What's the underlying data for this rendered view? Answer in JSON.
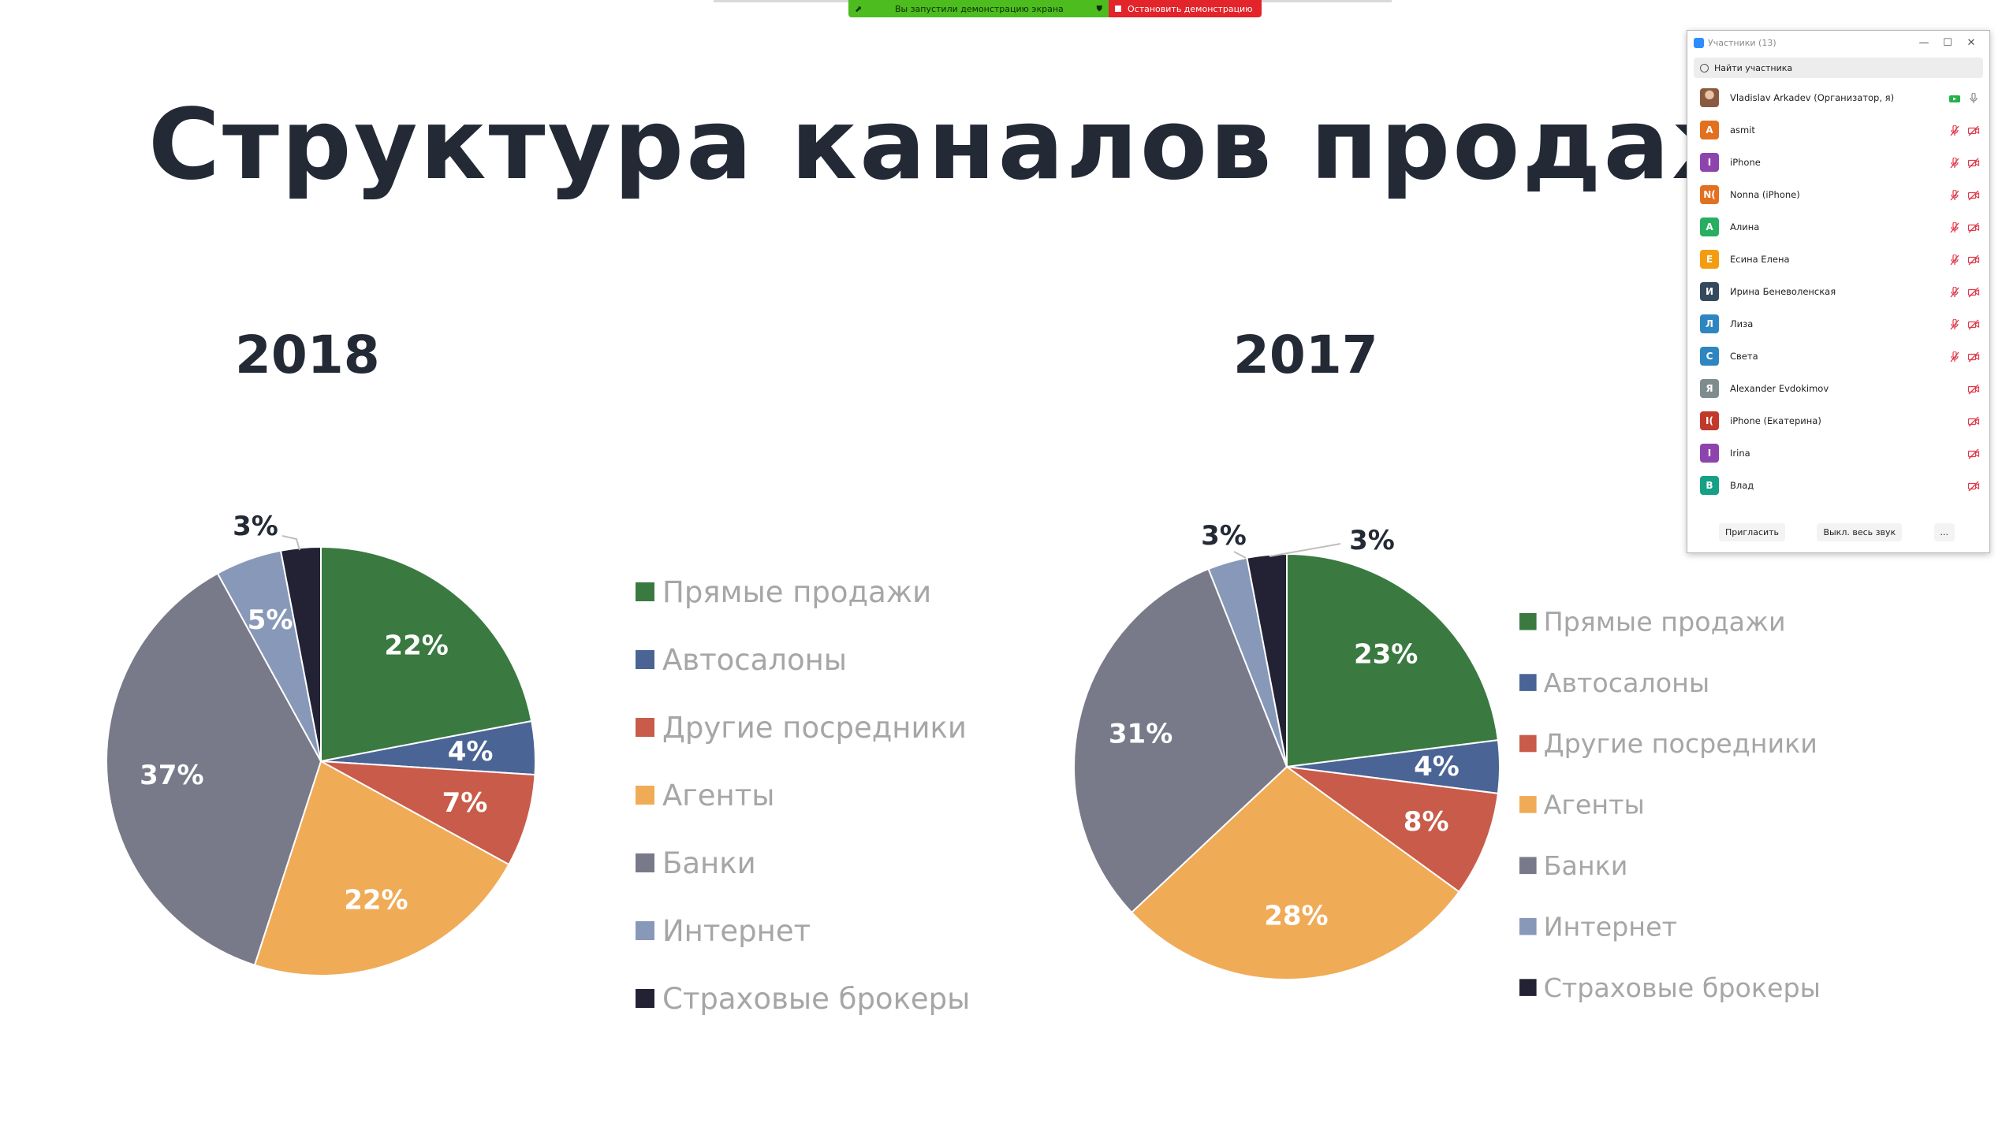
{
  "share_bar": {
    "status_text": "Вы запустили демонстрацию экрана",
    "stop_label": "Остановить демонстрацию"
  },
  "slide": {
    "title": "Структура каналов продаж",
    "year_left": "2018",
    "year_right": "2017"
  },
  "colors": {
    "direct": "#3a7a40",
    "dealers": "#4a6495",
    "other_intermediaries": "#c95b4a",
    "agents": "#f0ab57",
    "banks": "#787a8a",
    "internet": "#8898b8",
    "brokers": "#232235"
  },
  "chart_data": [
    {
      "type": "pie",
      "title": "2018",
      "categories": [
        "Прямые продажи",
        "Автосалоны",
        "Другие посредники",
        "Агенты",
        "Банки",
        "Интернет",
        "Страховые брокеры"
      ],
      "values": [
        22,
        4,
        7,
        22,
        37,
        5,
        3
      ],
      "labels": [
        "22%",
        "4%",
        "7%",
        "22%",
        "37%",
        "5%",
        "3%"
      ],
      "legend_position": "right"
    },
    {
      "type": "pie",
      "title": "2017",
      "categories": [
        "Прямые продажи",
        "Автосалоны",
        "Другие посредники",
        "Агенты",
        "Банки",
        "Интернет",
        "Страховые брокеры"
      ],
      "values": [
        23,
        4,
        8,
        28,
        31,
        3,
        3
      ],
      "labels": [
        "23%",
        "4%",
        "8%",
        "28%",
        "31%",
        "3%",
        "3%"
      ],
      "legend_position": "right"
    }
  ],
  "legend_left": [
    "Прямые продажи",
    "Автосалоны",
    "Другие посредники",
    "Агенты",
    "Банки",
    "Интернет",
    "Страховые брокеры"
  ],
  "legend_right": [
    "Прямые продажи",
    "Автосалоны",
    "Другие посредники",
    "Агенты",
    "Банки",
    "Интернет",
    "Страховые брокеры"
  ],
  "participants": {
    "title": "Участники (13)",
    "search_placeholder": "Найти участника",
    "list": [
      {
        "initial": "",
        "name": "Vladislav Arkadev (Организатор, я)",
        "color": "#b57a5a",
        "host": true,
        "muted": false
      },
      {
        "initial": "A",
        "name": "asmit",
        "color": "#e2701f",
        "host": false,
        "muted": true
      },
      {
        "initial": "I",
        "name": "iPhone",
        "color": "#8e44ad",
        "host": false,
        "muted": true
      },
      {
        "initial": "N(",
        "name": "Nonna (iPhone)",
        "color": "#e2701f",
        "host": false,
        "muted": true
      },
      {
        "initial": "А",
        "name": "Алина",
        "color": "#27ae60",
        "host": false,
        "muted": true
      },
      {
        "initial": "Е",
        "name": "Есина Елена",
        "color": "#f39c12",
        "host": false,
        "muted": true
      },
      {
        "initial": "И",
        "name": "Ирина Беневоленская",
        "color": "#34495e",
        "host": false,
        "muted": true
      },
      {
        "initial": "Л",
        "name": "Лиза",
        "color": "#2e86c1",
        "host": false,
        "muted": true
      },
      {
        "initial": "С",
        "name": "Света",
        "color": "#2e86c1",
        "host": false,
        "muted": true
      },
      {
        "initial": "Я",
        "name": "Alexander Evdokimov",
        "color": "#7f8c8d",
        "host": false,
        "muted": false
      },
      {
        "initial": "I(",
        "name": "iPhone (Екатерина)",
        "color": "#c0392b",
        "host": false,
        "muted": false
      },
      {
        "initial": "I",
        "name": "Irina",
        "color": "#8e44ad",
        "host": false,
        "muted": false
      },
      {
        "initial": "В",
        "name": "Влад",
        "color": "#16a085",
        "host": false,
        "muted": false
      }
    ],
    "invite_label": "Пригласить",
    "mute_all_label": "Выкл. весь звук",
    "more_label": "..."
  }
}
